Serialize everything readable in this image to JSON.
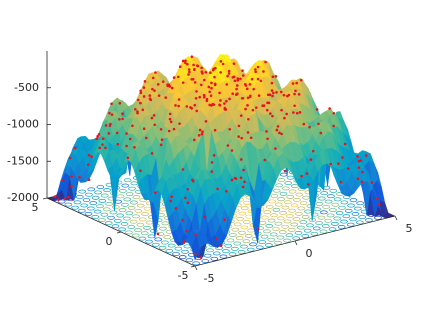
{
  "chart_data": {
    "type": "surface3d",
    "xlim": [
      -5,
      5
    ],
    "ylim": [
      -5,
      5
    ],
    "zlim": [
      -2000,
      0
    ],
    "xticks": [
      5,
      0,
      -5
    ],
    "yticks": [
      -5,
      0,
      5
    ],
    "zticks": [
      -500,
      -1000,
      -1500,
      -2000
    ],
    "marker_color": "#e8141c"
  }
}
